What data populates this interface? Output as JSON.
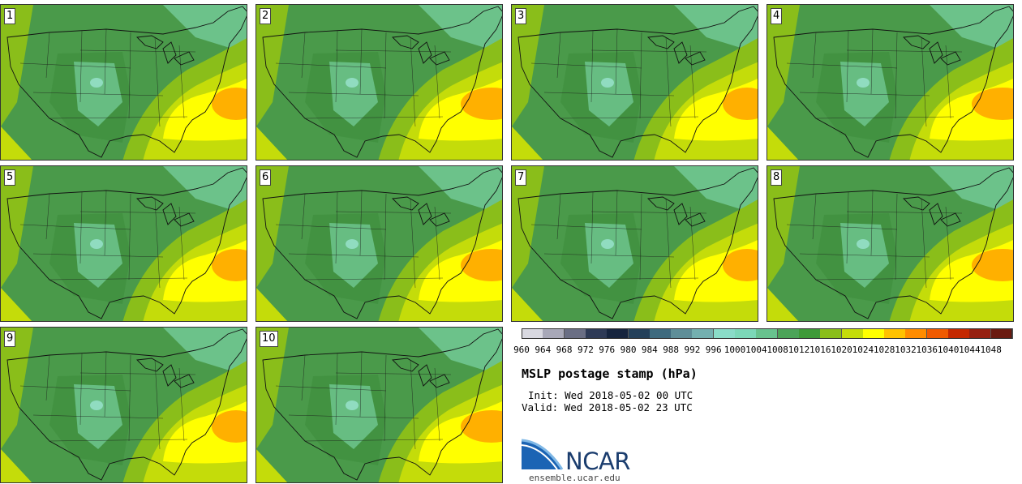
{
  "title": "MSLP postage stamp (hPa)",
  "init_text": "Init: Wed 2018-05-02 00 UTC",
  "valid_text": "Valid: Wed 2018-05-02 23 UTC",
  "logo_text": "NCAR",
  "url": "ensemble.ucar.edu",
  "members": [
    {
      "label": "1"
    },
    {
      "label": "2"
    },
    {
      "label": "3"
    },
    {
      "label": "4"
    },
    {
      "label": "5"
    },
    {
      "label": "6"
    },
    {
      "label": "7"
    },
    {
      "label": "8"
    },
    {
      "label": "9"
    },
    {
      "label": "10"
    }
  ],
  "colorbar": {
    "ticks": [
      "960",
      "964",
      "968",
      "972",
      "976",
      "980",
      "984",
      "988",
      "992",
      "996",
      "1000",
      "1004",
      "1008",
      "1012",
      "1016",
      "1020",
      "1024",
      "1028",
      "1032",
      "1036",
      "1040",
      "1044",
      "1048"
    ],
    "colors": [
      "#d8d8e0",
      "#a8a8b8",
      "#6a6e84",
      "#2e3a56",
      "#16243e",
      "#24405a",
      "#3e6a7e",
      "#5e8e98",
      "#74b0b0",
      "#8adcc8",
      "#7cd8b8",
      "#68c28e",
      "#4ca458",
      "#3e9a38",
      "#8abe1a",
      "#c4dc0a",
      "#ffff00",
      "#ffc200",
      "#ff8c00",
      "#f05a00",
      "#c42800",
      "#962010",
      "#6a1a10"
    ]
  },
  "map_colors": {
    "land_mid": "#4a9a4a",
    "land_dark": "#3e8e3c",
    "high_plains": "#6cc28a",
    "peak": "#90dcc0",
    "coast_light": "#8abe1a",
    "ridge_yellowgreen": "#c4dc0a",
    "ridge_yellow": "#ffff00",
    "ridge_orange": "#ffb000",
    "ne_light": "#6cc28a"
  }
}
